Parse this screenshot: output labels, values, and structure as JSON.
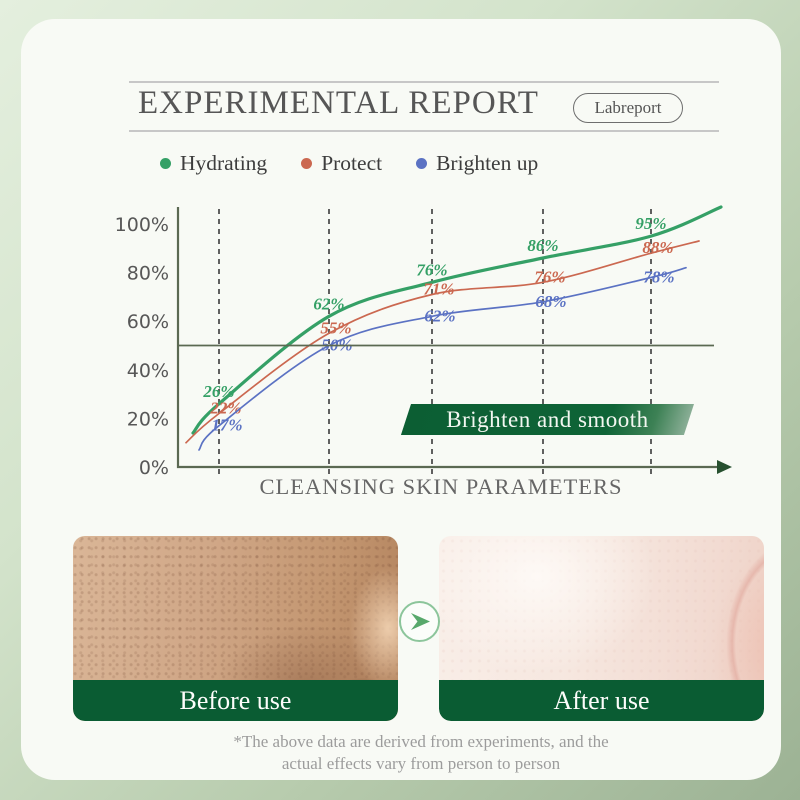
{
  "header": {
    "title": "EXPERIMENTAL REPORT",
    "badge": "Labreport"
  },
  "chart_data": {
    "type": "line",
    "xlabel": "CLEANSING SKIN PARAMETERS",
    "ylabel": "",
    "unit": "%",
    "ylim": [
      0,
      100
    ],
    "grid": "5 dashed vertical gridlines",
    "legend_position": "top",
    "reference_line_pct": 50,
    "y_ticks": [
      {
        "label": "100%",
        "value": 100
      },
      {
        "label": "80%",
        "value": 80
      },
      {
        "label": "60%",
        "value": 60
      },
      {
        "label": "40%",
        "value": 40
      },
      {
        "label": "20%",
        "value": 20
      },
      {
        "label": "0%",
        "value": 0
      }
    ],
    "series": [
      {
        "name": "Hydrating",
        "color": "#35a066",
        "values": [
          26,
          62,
          76,
          86,
          95
        ],
        "start_pct": 14,
        "end_pct": 107
      },
      {
        "name": "Protect",
        "color": "#cb6850",
        "values": [
          22,
          55,
          71,
          76,
          88
        ],
        "start_pct": 10,
        "end_pct": 93
      },
      {
        "name": "Brighten up",
        "color": "#5b72c3",
        "values": [
          17,
          50,
          62,
          68,
          78
        ],
        "start_pct": 7,
        "end_pct": 82
      }
    ],
    "annotation": "Brighten and smooth"
  },
  "comparison": {
    "before_label": "Before use",
    "after_label": "After use"
  },
  "footnote": {
    "line1": "*The above data are derived from experiments, and the",
    "line2": "actual effects vary from person to person"
  },
  "colors": {
    "accent_green": "#0a5c33",
    "axis": "#5b6952",
    "card_bg": "#f8faf5"
  }
}
